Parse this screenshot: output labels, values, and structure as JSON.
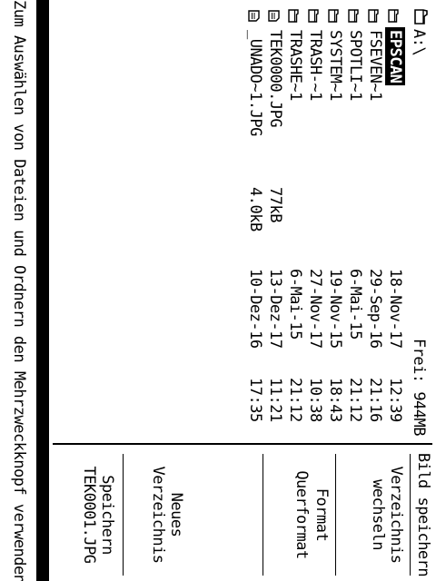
{
  "browser": {
    "path": "A:\\",
    "free": "Frei: 944MB",
    "entries": [
      {
        "type": "folder",
        "name": "EPSCAN",
        "size": "",
        "date": "18-Nov-17",
        "time": "12:39",
        "selected": true
      },
      {
        "type": "folder",
        "name": "FSEVEN~1",
        "size": "",
        "date": "29-Sep-16",
        "time": "21:16"
      },
      {
        "type": "folder",
        "name": "SPOTLI~1",
        "size": "",
        "date": "6-Mai-15",
        "time": "21:12"
      },
      {
        "type": "folder",
        "name": "SYSTEM~1",
        "size": "",
        "date": "19-Nov-15",
        "time": "18:43"
      },
      {
        "type": "folder",
        "name": "TRASH-~1",
        "size": "",
        "date": "27-Nov-17",
        "time": "10:38"
      },
      {
        "type": "folder",
        "name": "TRASHE~1",
        "size": "",
        "date": "6-Mai-15",
        "time": "21:12"
      },
      {
        "type": "file",
        "name": "TEK0000.JPG",
        "size": "77kB",
        "date": "13-Dez-17",
        "time": "11:21"
      },
      {
        "type": "file",
        "name": "_UNADO~1.JPG",
        "size": "4.0kB",
        "date": "10-Dez-16",
        "time": "17:35"
      }
    ]
  },
  "panel": {
    "title": "Bild speichern",
    "change_dir": {
      "line1": "Verzeichnis",
      "line2": "wechseln"
    },
    "format_label": "Format",
    "format_value": "Querformat",
    "new_dir": {
      "line1": "Neues",
      "line2": "Verzeichnis"
    },
    "save": {
      "line1": "Speichern",
      "line2": "TEK0001.JPG"
    }
  },
  "hint": "Zum Auswählen von Dateien und Ordnern den Mehrzweckknopf verwenden"
}
